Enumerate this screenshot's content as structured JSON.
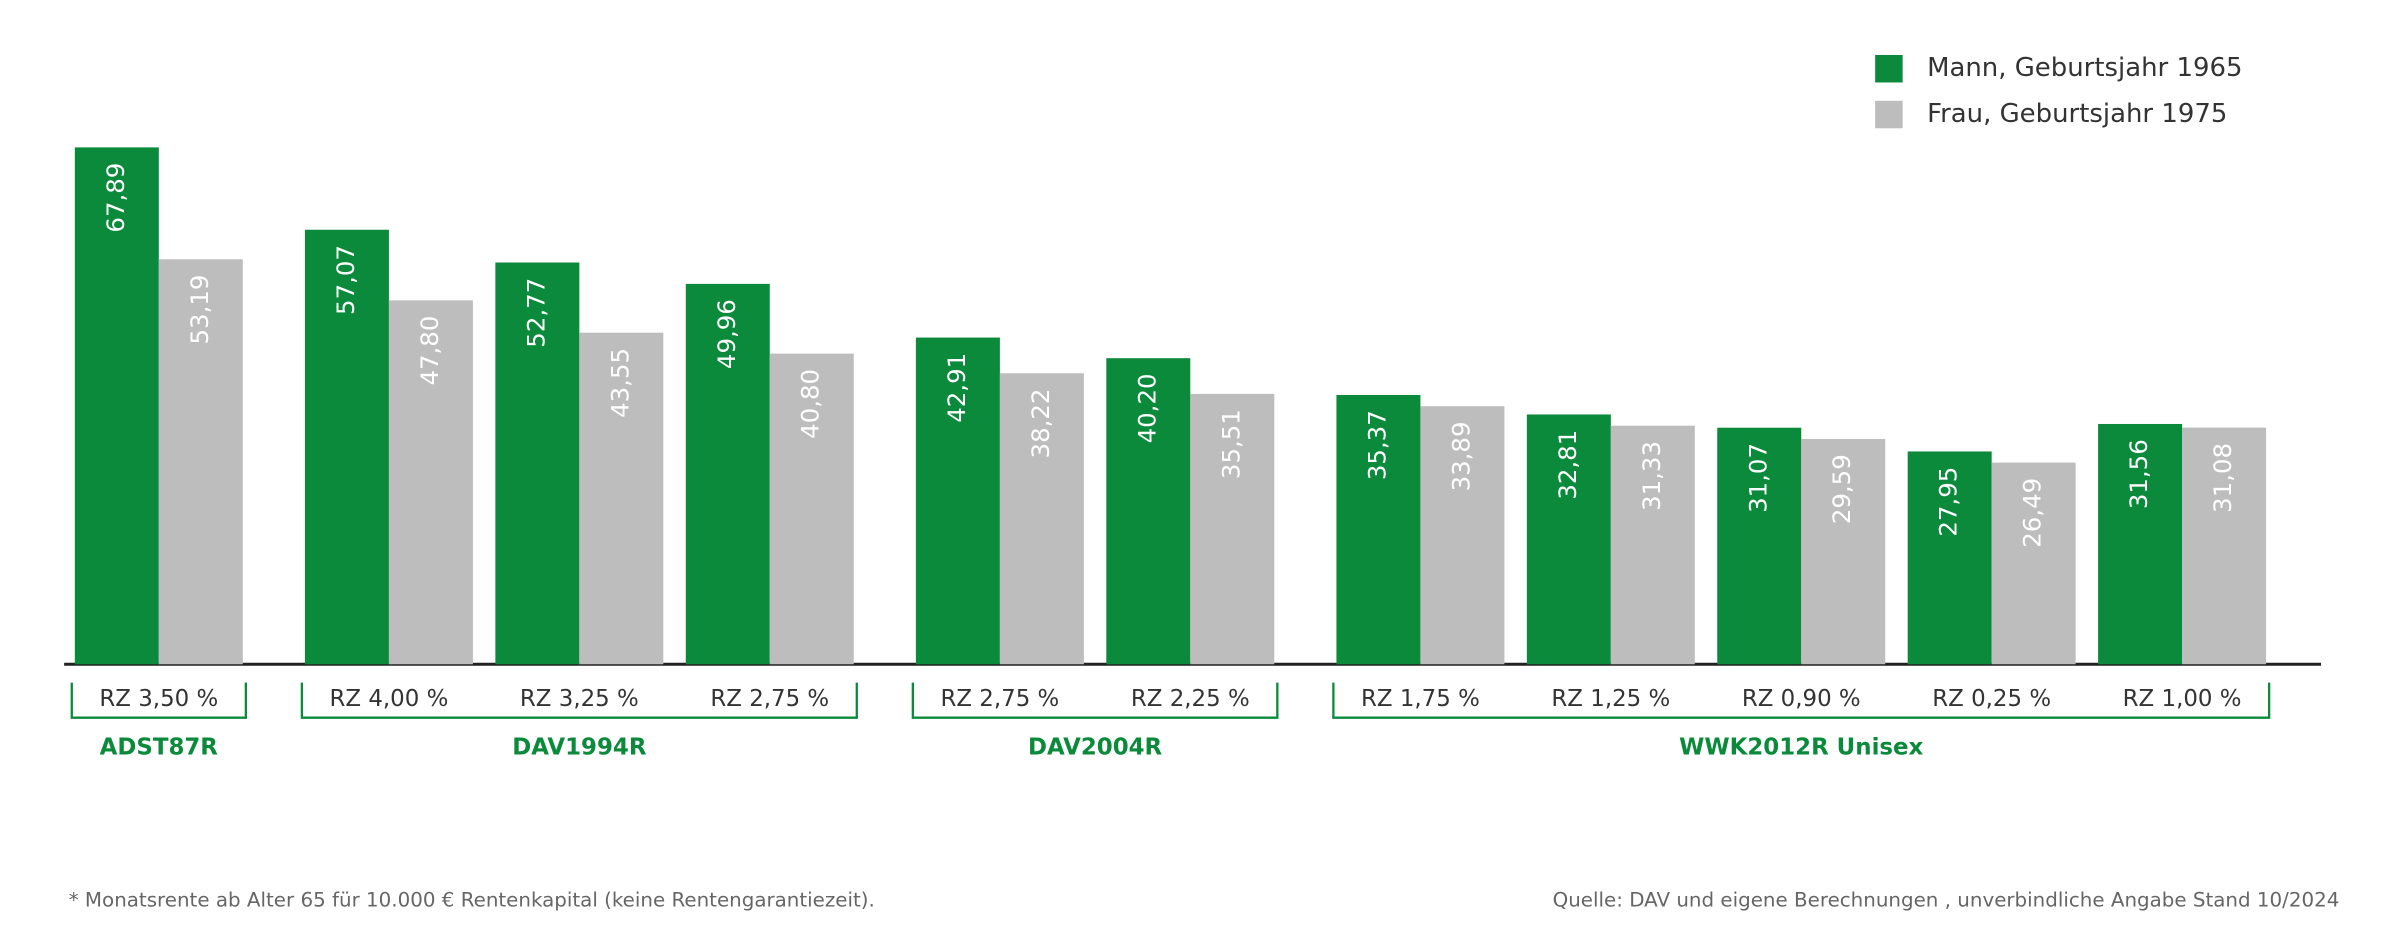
{
  "chart_data": {
    "type": "bar",
    "groups": [
      {
        "name": "ADST87R",
        "categories": [
          "RZ 3,50 %"
        ]
      },
      {
        "name": "DAV1994R",
        "categories": [
          "RZ 4,00 %",
          "RZ 3,25 %",
          "RZ 2,75 %"
        ]
      },
      {
        "name": "DAV2004R",
        "categories": [
          "RZ 2,75 %",
          "RZ 2,25 %"
        ]
      },
      {
        "name": "WWK2012R Unisex",
        "categories": [
          "RZ 1,75 %",
          "RZ 1,25 %",
          "RZ 0,90 %",
          "RZ 0,25 %",
          "RZ 1,00 %"
        ]
      }
    ],
    "series": [
      {
        "name": "Mann, Geburtsjahr 1965",
        "color": "#0a8a3a",
        "values": [
          67.89,
          57.07,
          52.77,
          49.96,
          42.91,
          40.2,
          35.37,
          32.81,
          31.07,
          27.95,
          31.56
        ],
        "value_labels": [
          "67,89",
          "57,07",
          "52,77",
          "49,96",
          "42,91",
          "40,20",
          "35,37",
          "32,81",
          "31,07",
          "27,95",
          "31,56"
        ]
      },
      {
        "name": "Frau, Geburtsjahr 1975",
        "color": "#bdbdbd",
        "values": [
          53.19,
          47.8,
          43.55,
          40.8,
          38.22,
          35.51,
          33.89,
          31.33,
          29.59,
          26.49,
          31.08
        ],
        "value_labels": [
          "53,19",
          "47,80",
          "43,55",
          "40,80",
          "38,22",
          "35,51",
          "33,89",
          "31,33",
          "29,59",
          "26,49",
          "31,08"
        ]
      }
    ],
    "ylim": [
      0,
      70
    ],
    "footnote": "* Monatsrente ab Alter 65 für 10.000 € Rentenkapital (keine Rentengarantiezeit).",
    "source": "Quelle: DAV und eigene Berechnungen , unverbindliche Angabe Stand 10/2024"
  }
}
